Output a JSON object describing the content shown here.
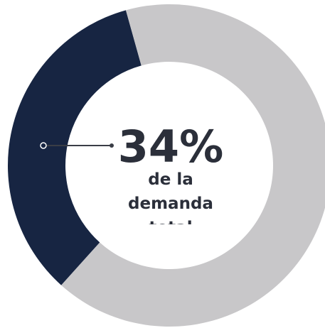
{
  "chart_data": {
    "type": "donut",
    "categories": [
      null,
      null
    ],
    "values": [
      34,
      66
    ],
    "value_labels": [
      "34%",
      null
    ],
    "colors": [
      "#172542",
      "#c8c7c9"
    ],
    "annotation": "de la demanda total"
  }
}
